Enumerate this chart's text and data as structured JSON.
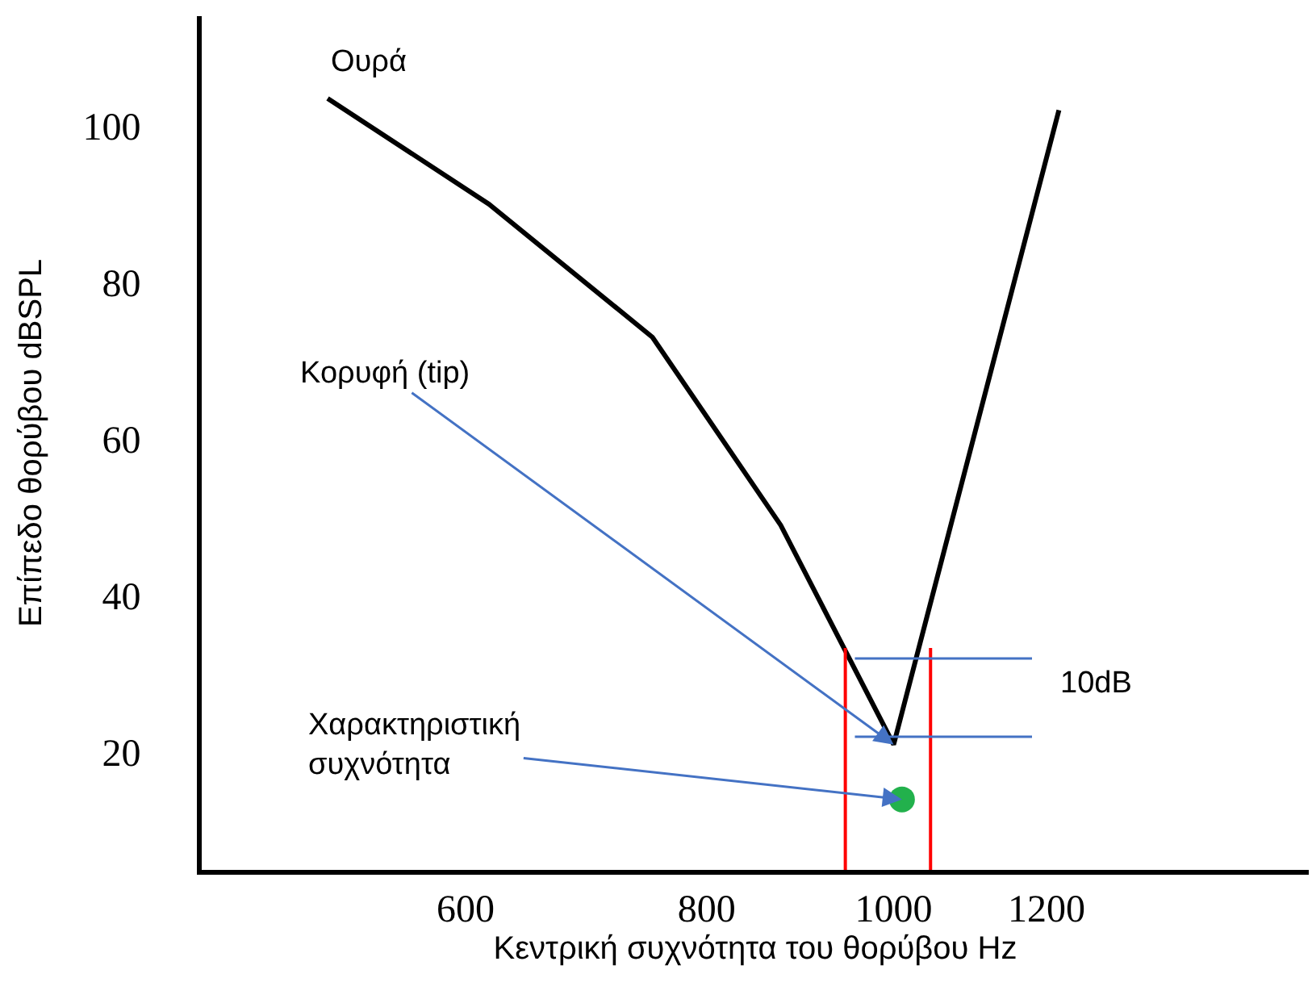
{
  "chart_data": {
    "type": "line",
    "xlabel": "Κεντρική συχνότητα του θορύβου Hz",
    "ylabel": "Επίπεδο θορύβου dBSPL",
    "log": "x",
    "xlim": [
      438,
      1641
    ],
    "ylim": [
      5,
      114
    ],
    "xticks": [
      600,
      800,
      1000,
      1200
    ],
    "yticks": [
      20,
      40,
      60,
      80,
      100
    ],
    "line_style": "solid",
    "series": [
      {
        "color": "#000000",
        "x": [
          509,
          617,
          750,
          874,
          1000,
          1218
        ],
        "values": [
          103.5,
          90,
          73,
          49,
          21,
          102
        ]
      },
      {
        "type": "scatter",
        "color": "#22b14c",
        "x": [
          1010
        ],
        "values": [
          14
        ]
      }
    ],
    "ref_lines": [
      {
        "axis": "x",
        "value": 944,
        "color": "#ff0000"
      },
      {
        "axis": "x",
        "value": 1045,
        "color": "#ff0000"
      },
      {
        "axis": "y",
        "value": 32,
        "color": "#4472c4"
      },
      {
        "axis": "y",
        "value": 22,
        "color": "#4472c4"
      }
    ],
    "annotations": [
      {
        "text": "Ουρά",
        "x": 509,
        "y": 103.5
      },
      {
        "text": "Κορυφή (tip)",
        "x": 1000,
        "y": 21
      },
      {
        "text": "Χαρακτηριστική\nσυχνότητα",
        "x": 1010,
        "y": 14
      },
      "10dB"
    ]
  }
}
